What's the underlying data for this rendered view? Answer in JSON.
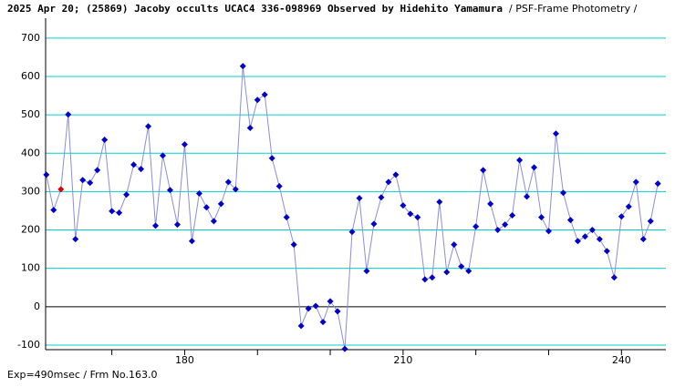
{
  "chart_data": {
    "type": "line",
    "title": "2025 Apr 20; (25869) Jacoby occults UCAC4 336-098969 Observed by Hidehito Yamamura",
    "subtitle": "/ PSF-Frame Photometry /",
    "footnote": "Exp=490msec / Frm No.163.0",
    "x": [
      161,
      162,
      163,
      164,
      165,
      166,
      167,
      168,
      169,
      170,
      171,
      172,
      173,
      174,
      175,
      176,
      177,
      178,
      179,
      180,
      181,
      182,
      183,
      184,
      185,
      186,
      187,
      188,
      189,
      190,
      191,
      192,
      193,
      194,
      195,
      196,
      197,
      198,
      199,
      200,
      201,
      202,
      203,
      204,
      205,
      206,
      207,
      208,
      209,
      210,
      211,
      212,
      213,
      214,
      215,
      216,
      217,
      218,
      219,
      220,
      221,
      222,
      223,
      224,
      225,
      226,
      227,
      228,
      229,
      230,
      231,
      232,
      233,
      234,
      235,
      236,
      237,
      238,
      239,
      240,
      241,
      242,
      243,
      244,
      245
    ],
    "series": [
      {
        "color": "#0000cc",
        "line_color": "#8c8cdc",
        "highlight_color": "#e00000",
        "highlight_index": 2,
        "values": [
          344,
          252,
          306,
          501,
          176,
          330,
          323,
          356,
          435,
          249,
          245,
          292,
          370,
          359,
          470,
          211,
          394,
          304,
          214,
          423,
          171,
          295,
          259,
          223,
          268,
          325,
          306,
          627,
          466,
          539,
          553,
          387,
          314,
          233,
          162,
          -50,
          -5,
          2,
          -40,
          14,
          -12,
          -110,
          195,
          283,
          93,
          216,
          285,
          325,
          344,
          264,
          242,
          233,
          71,
          76,
          273,
          90,
          162,
          105,
          93,
          209,
          356,
          268,
          200,
          214,
          238,
          382,
          287,
          363,
          233,
          197,
          451,
          297,
          226,
          171,
          183,
          200,
          176,
          145,
          76,
          235,
          261,
          325,
          176,
          223,
          321
        ]
      }
    ],
    "xlim": [
      160.9,
      246.1
    ],
    "ylim": [
      -112,
      752
    ],
    "xticks": [
      180,
      210,
      240
    ],
    "xminor_ticks": [
      170,
      190,
      200,
      220,
      230
    ],
    "yticks": [
      -100,
      0,
      100,
      200,
      300,
      400,
      500,
      600,
      700
    ],
    "grid": true,
    "grid_color": "#00d0d0",
    "zero_line_color": "#000000"
  }
}
